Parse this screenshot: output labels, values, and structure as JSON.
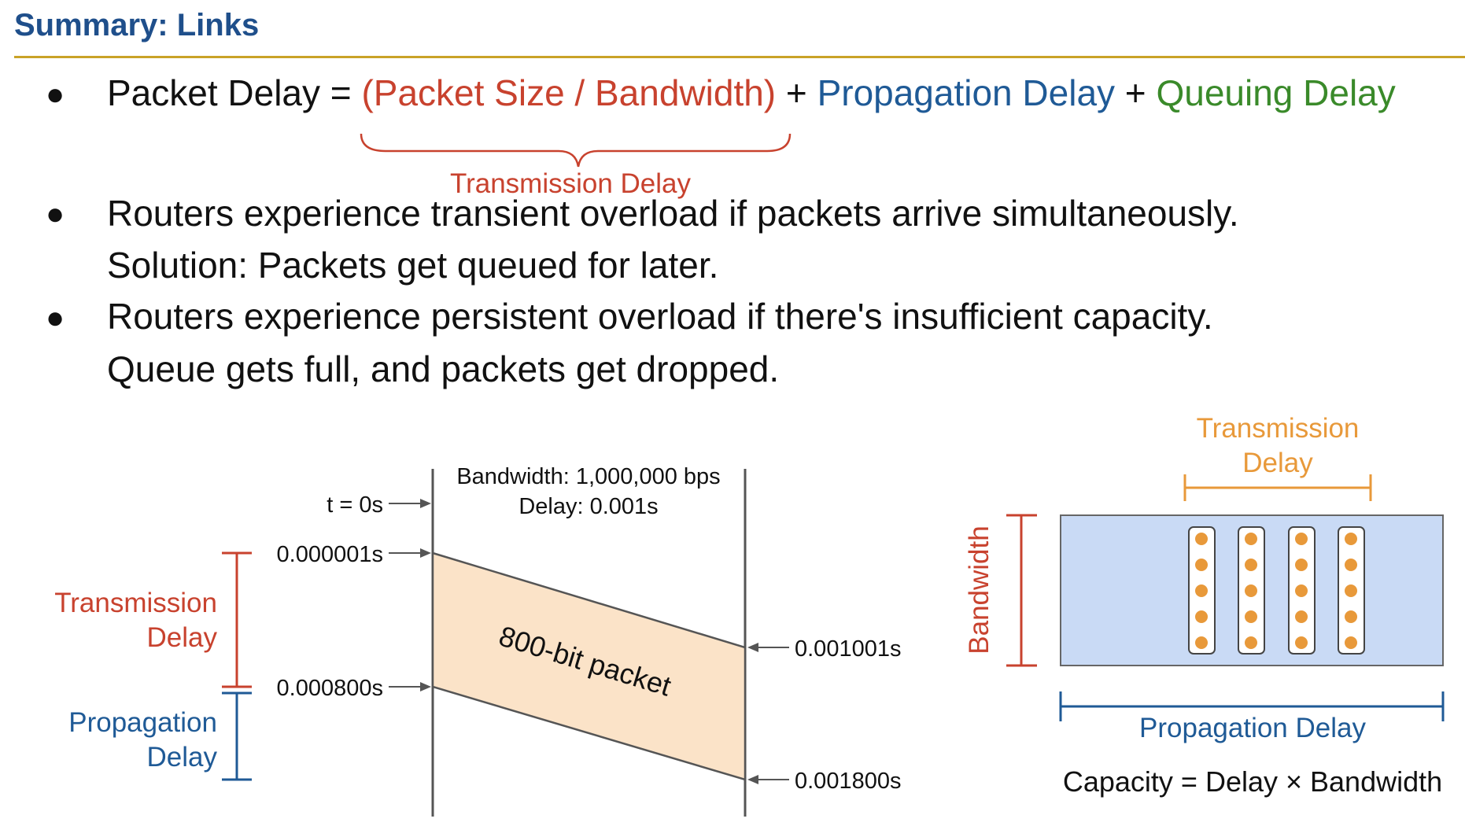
{
  "title": "Summary: Links",
  "bullets": {
    "b1": {
      "marker": "●",
      "prefix": "Packet Delay = ",
      "term1": "(Packet Size / Bandwidth)",
      "plus1": " + ",
      "term2": "Propagation Delay",
      "plus2": " + ",
      "term3": "Queuing Delay",
      "brace_label": "Transmission Delay"
    },
    "b2": {
      "marker": "●",
      "line1": "Routers experience transient overload if packets arrive simultaneously.",
      "line2": "Solution: Packets get queued for later."
    },
    "b3": {
      "marker": "●",
      "line1": "Routers experience persistent overload if there's insufficient capacity.",
      "line2": "Queue gets full, and packets get dropped."
    }
  },
  "timing_diagram": {
    "link_bandwidth": "Bandwidth: 1,000,000 bps",
    "link_delay": "Delay: 0.001s",
    "t0": "t = 0s",
    "t_first_bit_sent": "0.000001s",
    "t_last_bit_sent": "0.000800s",
    "t_first_bit_arrive": "0.001001s",
    "t_last_bit_arrive": "0.001800s",
    "packet_label": "800-bit packet",
    "transmission_label_1": "Transmission",
    "transmission_label_2": "Delay",
    "propagation_label_1": "Propagation",
    "propagation_label_2": "Delay"
  },
  "pipe_diagram": {
    "transmission_label_1": "Transmission",
    "transmission_label_2": "Delay",
    "bandwidth_label": "Bandwidth",
    "propagation_label": "Propagation Delay",
    "capacity_formula": "Capacity = Delay × Bandwidth",
    "packet_columns": 4,
    "bits_per_column": 5
  },
  "colors": {
    "title": "#1f4f8b",
    "rule": "#c9a227",
    "transmission": "#c8422e",
    "propagation": "#1f5a96",
    "queuing": "#3a8a2a",
    "pipe_transmission": "#e8993a",
    "packet_fill": "#fbe3c8",
    "pipe_fill": "#c9daf5",
    "bit_dot": "#e8993a"
  }
}
